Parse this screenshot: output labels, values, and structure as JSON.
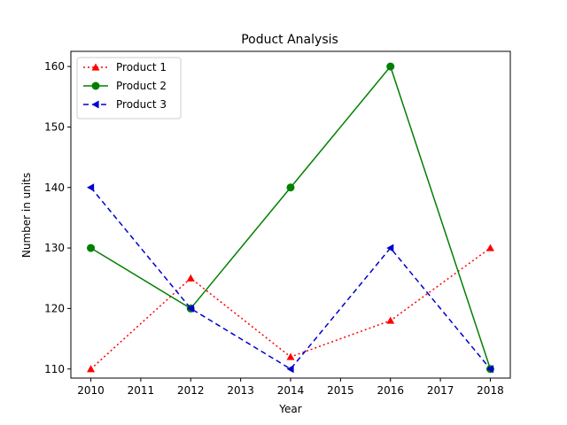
{
  "chart_data": {
    "type": "line",
    "title": "Poduct Analysis",
    "xlabel": "Year",
    "ylabel": "Number in units",
    "xlim": [
      2009.6,
      2018.4
    ],
    "ylim": [
      108.5,
      162.5
    ],
    "xticks": [
      2010,
      2011,
      2012,
      2013,
      2014,
      2015,
      2016,
      2017,
      2018
    ],
    "yticks": [
      110,
      120,
      130,
      140,
      150,
      160
    ],
    "grid": false,
    "legend_position": "upper-left",
    "series": [
      {
        "name": "Product 1",
        "x": [
          2010,
          2012,
          2014,
          2016,
          2018
        ],
        "y": [
          110,
          125,
          112,
          118,
          130
        ],
        "color": "#ff0000",
        "linestyle": "dotted",
        "marker": "triangle-up"
      },
      {
        "name": "Product 2",
        "x": [
          2010,
          2012,
          2014,
          2016,
          2018
        ],
        "y": [
          130,
          120,
          140,
          160,
          110
        ],
        "color": "#008000",
        "linestyle": "solid",
        "marker": "circle"
      },
      {
        "name": "Product 3",
        "x": [
          2010,
          2012,
          2014,
          2016,
          2018
        ],
        "y": [
          140,
          120,
          110,
          130,
          110
        ],
        "color": "#0000cd",
        "linestyle": "dashed",
        "marker": "triangle-left"
      }
    ]
  }
}
